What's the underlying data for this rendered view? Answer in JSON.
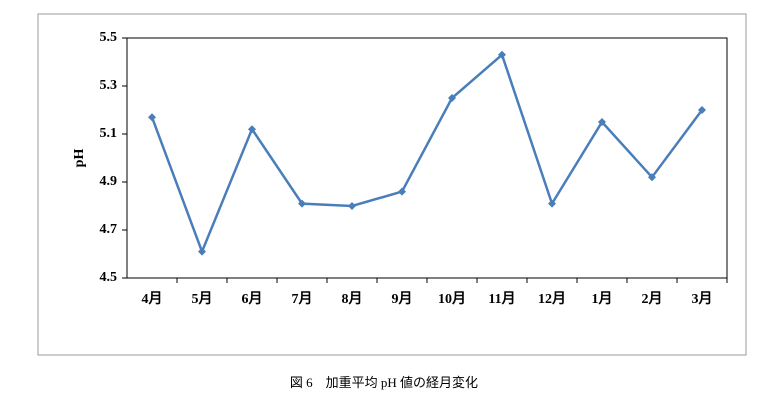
{
  "chart_data": {
    "type": "line",
    "caption": "図 6　加重平均 pH 値の経月変化",
    "y_label": "pH",
    "categories": [
      "4月",
      "5月",
      "6月",
      "7月",
      "8月",
      "9月",
      "10月",
      "11月",
      "12月",
      "1月",
      "2月",
      "3月"
    ],
    "series": [
      {
        "color": "#4a7ebb",
        "values": [
          5.17,
          4.61,
          5.12,
          4.81,
          4.8,
          4.86,
          5.25,
          5.43,
          4.81,
          5.15,
          4.92,
          5.2
        ]
      }
    ],
    "ylim": [
      4.5,
      5.5
    ],
    "yticks": [
      4.5,
      4.7,
      4.9,
      5.1,
      5.3,
      5.5
    ],
    "grid": false
  }
}
